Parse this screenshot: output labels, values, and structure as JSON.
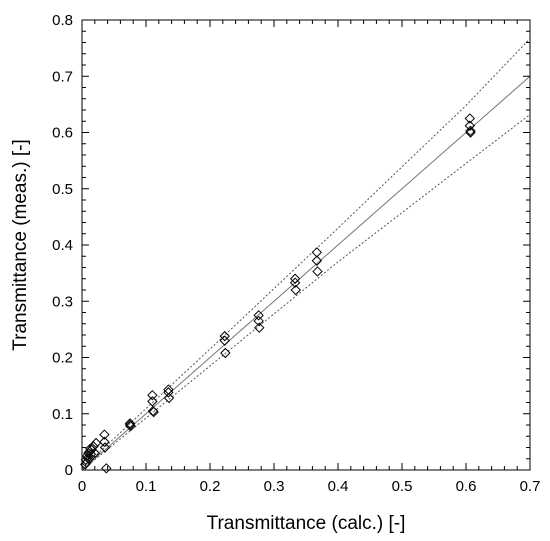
{
  "chart_data": {
    "type": "scatter",
    "xlabel": "Transmittance (calc.) [-]",
    "ylabel": "Transmittance (meas.) [-]",
    "xlim": [
      0,
      0.7
    ],
    "ylim": [
      0,
      0.8
    ],
    "xticks": [
      "0",
      "0.1",
      "0.2",
      "0.3",
      "0.4",
      "0.5",
      "0.6",
      "0.7"
    ],
    "yticks": [
      "0",
      "0.1",
      "0.2",
      "0.3",
      "0.4",
      "0.5",
      "0.6",
      "0.7",
      "0.8"
    ],
    "grid": false,
    "legend": "none",
    "marker": "diamond-open",
    "series": [
      {
        "points": [
          [
            0.005,
            0.01
          ],
          [
            0.006,
            0.018
          ],
          [
            0.007,
            0.013
          ],
          [
            0.008,
            0.025
          ],
          [
            0.01,
            0.03
          ],
          [
            0.011,
            0.02
          ],
          [
            0.012,
            0.033
          ],
          [
            0.013,
            0.038
          ],
          [
            0.014,
            0.028
          ],
          [
            0.015,
            0.036
          ],
          [
            0.018,
            0.042
          ],
          [
            0.02,
            0.03
          ],
          [
            0.022,
            0.048
          ],
          [
            0.035,
            0.063
          ],
          [
            0.035,
            0.05
          ],
          [
            0.036,
            0.04
          ],
          [
            0.038,
            0.003
          ],
          [
            0.075,
            0.083
          ],
          [
            0.075,
            0.08
          ],
          [
            0.076,
            0.078
          ],
          [
            0.11,
            0.133
          ],
          [
            0.11,
            0.122
          ],
          [
            0.111,
            0.105
          ],
          [
            0.112,
            0.103
          ],
          [
            0.135,
            0.143
          ],
          [
            0.135,
            0.138
          ],
          [
            0.136,
            0.128
          ],
          [
            0.223,
            0.238
          ],
          [
            0.223,
            0.23
          ],
          [
            0.224,
            0.208
          ],
          [
            0.276,
            0.275
          ],
          [
            0.276,
            0.265
          ],
          [
            0.277,
            0.253
          ],
          [
            0.333,
            0.34
          ],
          [
            0.333,
            0.333
          ],
          [
            0.334,
            0.32
          ],
          [
            0.367,
            0.387
          ],
          [
            0.367,
            0.372
          ],
          [
            0.368,
            0.353
          ],
          [
            0.606,
            0.625
          ],
          [
            0.606,
            0.612
          ],
          [
            0.607,
            0.603
          ],
          [
            0.607,
            0.6
          ]
        ]
      }
    ],
    "lines": [
      {
        "style": "solid",
        "points": [
          [
            0,
            0
          ],
          [
            0.7,
            0.7
          ]
        ]
      },
      {
        "style": "dotted",
        "points": [
          [
            0,
            0.003
          ],
          [
            0.2,
            0.215
          ],
          [
            0.4,
            0.43
          ],
          [
            0.6,
            0.648
          ],
          [
            0.7,
            0.767
          ]
        ]
      },
      {
        "style": "dotted",
        "points": [
          [
            0,
            0
          ],
          [
            0.2,
            0.185
          ],
          [
            0.4,
            0.37
          ],
          [
            0.6,
            0.545
          ],
          [
            0.7,
            0.632
          ]
        ]
      }
    ],
    "colors": {
      "marker": "#000000",
      "line": "#777777",
      "axis": "#000000"
    }
  }
}
